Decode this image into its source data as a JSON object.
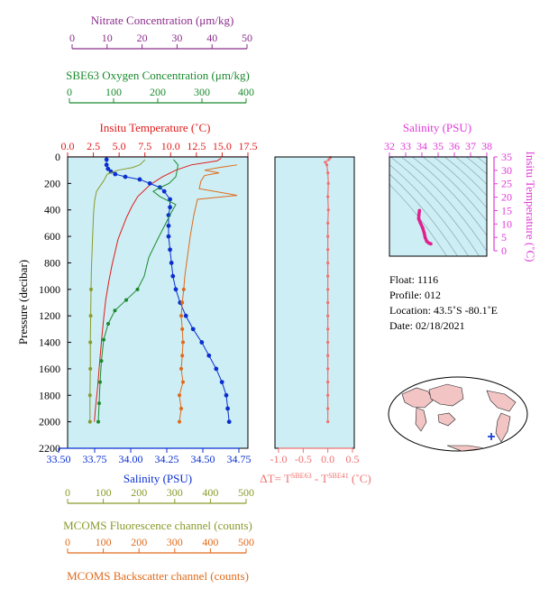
{
  "colors": {
    "nitrate": "#8b2d8b",
    "oxygen": "#1b8a2e",
    "temperature": "#e01b1b",
    "salinity": "#0a2fd0",
    "fluorescence": "#8a9a2a",
    "backscatter": "#e06a1a",
    "panel_bg": "#cdeef4",
    "delta": "#f07070",
    "ts_salinity": "#e03ad8",
    "ts_line": "#e0208f"
  },
  "axes": {
    "nitrate": {
      "title": "Nitrate Concentration (μm/kg)",
      "ticks": [
        "0",
        "10",
        "20",
        "30",
        "40",
        "50"
      ]
    },
    "oxygen": {
      "title": "SBE63 Oxygen Concentration (μm/kg)",
      "ticks": [
        "0",
        "100",
        "200",
        "300",
        "400"
      ]
    },
    "temperature": {
      "title": "Insitu Temperature (˚C)",
      "ticks": [
        "0.0",
        "2.5",
        "5.0",
        "7.5",
        "10.0",
        "12.5",
        "15.0",
        "17.5"
      ]
    },
    "salinity": {
      "title": "Salinity (PSU)",
      "ticks": [
        "33.50",
        "33.75",
        "34.00",
        "34.25",
        "34.50",
        "34.75"
      ]
    },
    "pressure": {
      "title": "Pressure (decibar)",
      "ticks": [
        "0",
        "200",
        "400",
        "600",
        "800",
        "1000",
        "1200",
        "1400",
        "1600",
        "1800",
        "2000",
        "2200"
      ]
    },
    "fluorescence": {
      "title": "MCOMS Fluorescence channel (counts)",
      "ticks": [
        "0",
        "100",
        "200",
        "300",
        "400",
        "500"
      ]
    },
    "backscatter": {
      "title": "MCOMS Backscatter channel (counts)",
      "ticks": [
        "0",
        "100",
        "200",
        "300",
        "400",
        "500"
      ]
    },
    "delta": {
      "ticks": [
        "-1.0",
        "-0.5",
        "0.0",
        "0.5"
      ],
      "label_prefix": "ΔT= T",
      "sup1": "SBE63",
      "mid": " - T",
      "sup2": "SBE41",
      "label_suffix": " (˚C)"
    },
    "ts_salinity": {
      "title": "Salinity (PSU)",
      "ticks": [
        "32",
        "33",
        "34",
        "35",
        "36",
        "37",
        "38"
      ]
    },
    "ts_temperature": {
      "title": "Insitu Temperature (˚C)",
      "ticks": [
        "0",
        "5",
        "10",
        "15",
        "20",
        "25",
        "30",
        "35"
      ]
    }
  },
  "info": {
    "float": "Float:  1116",
    "profile": "Profile:  012",
    "location": "Location:  43.5˚S  -80.1˚E",
    "date": "Date:  02/18/2021"
  },
  "chart_data": [
    {
      "type": "line",
      "title": "",
      "ylabel": "Pressure (decibar)",
      "ylim": [
        2200,
        0
      ],
      "series": [
        {
          "name": "Insitu Temperature (˚C)",
          "xlim": [
            0,
            17.5
          ],
          "points": [
            [
              14.9,
              10
            ],
            [
              14.5,
              30
            ],
            [
              12.0,
              60
            ],
            [
              10.5,
              100
            ],
            [
              9.2,
              150
            ],
            [
              8.0,
              210
            ],
            [
              6.8,
              300
            ],
            [
              6.2,
              380
            ],
            [
              5.7,
              460
            ],
            [
              5.3,
              540
            ],
            [
              4.9,
              620
            ],
            [
              4.6,
              720
            ],
            [
              4.3,
              820
            ],
            [
              4.0,
              940
            ],
            [
              3.7,
              1080
            ],
            [
              3.5,
              1220
            ],
            [
              3.3,
              1380
            ],
            [
              3.1,
              1560
            ],
            [
              2.9,
              1750
            ],
            [
              2.7,
              1900
            ],
            [
              2.6,
              2000
            ]
          ]
        },
        {
          "name": "Salinity (PSU)",
          "xlim": [
            33.5,
            34.75
          ],
          "points": [
            [
              33.77,
              20
            ],
            [
              33.77,
              60
            ],
            [
              33.78,
              90
            ],
            [
              33.8,
              110
            ],
            [
              33.83,
              130
            ],
            [
              33.9,
              150
            ],
            [
              34.0,
              170
            ],
            [
              34.07,
              200
            ],
            [
              34.14,
              230
            ],
            [
              34.17,
              260
            ],
            [
              34.21,
              320
            ],
            [
              34.21,
              380
            ],
            [
              34.2,
              440
            ],
            [
              34.2,
              520
            ],
            [
              34.2,
              600
            ],
            [
              34.21,
              700
            ],
            [
              34.22,
              800
            ],
            [
              34.23,
              900
            ],
            [
              34.25,
              1000
            ],
            [
              34.28,
              1100
            ],
            [
              34.32,
              1200
            ],
            [
              34.37,
              1300
            ],
            [
              34.43,
              1400
            ],
            [
              34.48,
              1500
            ],
            [
              34.53,
              1600
            ],
            [
              34.57,
              1700
            ],
            [
              34.6,
              1800
            ],
            [
              34.61,
              1900
            ],
            [
              34.62,
              2000
            ]
          ]
        },
        {
          "name": "SBE63 Oxygen Concentration (μm/kg)",
          "xlim": [
            0,
            400
          ],
          "points": [
            [
              235,
              20
            ],
            [
              245,
              60
            ],
            [
              243,
              100
            ],
            [
              240,
              150
            ],
            [
              225,
              200
            ],
            [
              200,
              240
            ],
            [
              190,
              260
            ],
            [
              205,
              300
            ],
            [
              240,
              360
            ],
            [
              230,
              420
            ],
            [
              215,
              520
            ],
            [
              200,
              620
            ],
            [
              180,
              760
            ],
            [
              170,
              900
            ],
            [
              155,
              1000
            ],
            [
              130,
              1080
            ],
            [
              105,
              1160
            ],
            [
              90,
              1260
            ],
            [
              80,
              1380
            ],
            [
              75,
              1540
            ],
            [
              72,
              1700
            ],
            [
              70,
              1860
            ],
            [
              68,
              2000
            ]
          ]
        },
        {
          "name": "MCOMS Fluorescence channel (counts)",
          "xlim": [
            0,
            500
          ],
          "points": [
            [
              215,
              20
            ],
            [
              200,
              60
            ],
            [
              180,
              80
            ],
            [
              140,
              100
            ],
            [
              110,
              130
            ],
            [
              100,
              180
            ],
            [
              90,
              220
            ],
            [
              80,
              260
            ],
            [
              75,
              330
            ],
            [
              72,
              420
            ],
            [
              70,
              560
            ],
            [
              68,
              700
            ],
            [
              66,
              850
            ],
            [
              65,
              1000
            ],
            [
              64,
              1200
            ],
            [
              63,
              1400
            ],
            [
              63,
              1600
            ],
            [
              62,
              1800
            ],
            [
              62,
              2000
            ]
          ]
        },
        {
          "name": "MCOMS Backscatter channel (counts)",
          "xlim": [
            0,
            500
          ],
          "points": [
            [
              470,
              60
            ],
            [
              420,
              80
            ],
            [
              380,
              100
            ],
            [
              420,
              120
            ],
            [
              380,
              140
            ],
            [
              370,
              180
            ],
            [
              365,
              240
            ],
            [
              470,
              290
            ],
            [
              360,
              320
            ],
            [
              355,
              380
            ],
            [
              350,
              440
            ],
            [
              345,
              520
            ],
            [
              340,
              600
            ],
            [
              335,
              700
            ],
            [
              330,
              800
            ],
            [
              325,
              900
            ],
            [
              322,
              1000
            ],
            [
              318,
              1100
            ],
            [
              315,
              1200
            ],
            [
              318,
              1300
            ],
            [
              320,
              1400
            ],
            [
              318,
              1500
            ],
            [
              315,
              1600
            ],
            [
              320,
              1700
            ],
            [
              310,
              1800
            ],
            [
              315,
              1900
            ],
            [
              310,
              2000
            ]
          ]
        }
      ]
    },
    {
      "type": "line",
      "title": "",
      "xlim": [
        -1.0,
        0.5
      ],
      "ylim": [
        2200,
        0
      ],
      "series": [
        {
          "points": [
            [
              0.05,
              5
            ],
            [
              0.02,
              20
            ],
            [
              -0.05,
              40
            ],
            [
              -0.02,
              60
            ],
            [
              0.0,
              120
            ],
            [
              0.01,
              200
            ],
            [
              0.0,
              300
            ],
            [
              0.01,
              400
            ],
            [
              0.0,
              500
            ],
            [
              0.0,
              600
            ],
            [
              0.0,
              700
            ],
            [
              0.0,
              800
            ],
            [
              0.0,
              900
            ],
            [
              0.0,
              1000
            ],
            [
              0.0,
              1100
            ],
            [
              0.0,
              1200
            ],
            [
              0.0,
              1300
            ],
            [
              0.0,
              1400
            ],
            [
              0.0,
              1500
            ],
            [
              0.0,
              1600
            ],
            [
              0.0,
              1700
            ],
            [
              0.0,
              1800
            ],
            [
              0.0,
              1900
            ],
            [
              0.0,
              2000
            ]
          ]
        }
      ]
    },
    {
      "type": "scatter",
      "title": "",
      "xlabel": "Salinity (PSU)",
      "ylabel": "Insitu Temperature (˚C)",
      "xlim": [
        32,
        38
      ],
      "ylim": [
        -2,
        35
      ],
      "series": [
        {
          "points": [
            [
              33.85,
              15.0
            ],
            [
              33.82,
              13.5
            ],
            [
              33.8,
              12.0
            ],
            [
              33.9,
              10.5
            ],
            [
              34.05,
              8.5
            ],
            [
              34.15,
              6.5
            ],
            [
              34.2,
              5.0
            ],
            [
              34.3,
              3.5
            ],
            [
              34.45,
              2.8
            ],
            [
              34.55,
              2.6
            ]
          ]
        }
      ]
    }
  ]
}
